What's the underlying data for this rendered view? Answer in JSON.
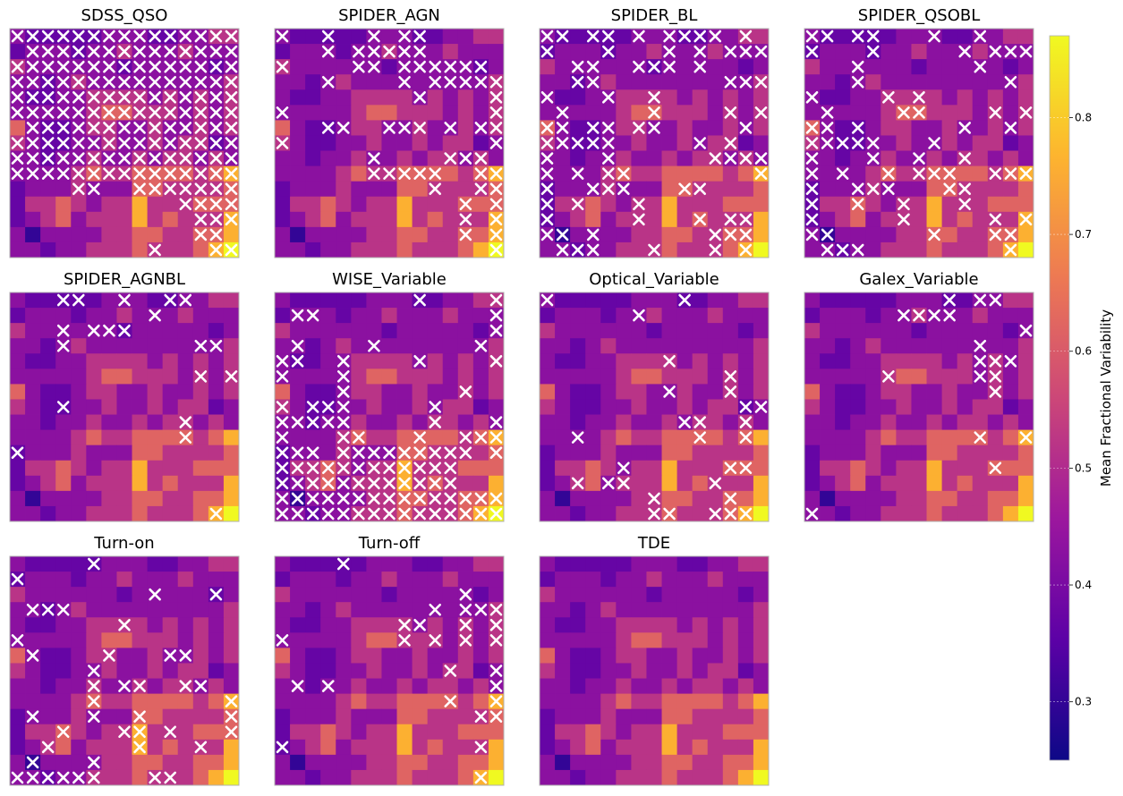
{
  "chart_data": {
    "type": "heatmap",
    "grid": [
      15,
      15
    ],
    "colormap": "plasma",
    "base_map_shared_across_panels": true,
    "base_map": [
      "2,1,1,1,1,1,2,2,2,1,1,2,2,3,3",
      "1,2,2,2,1,2,2,3,2,2,2,3,2,2,2",
      "3,2,2,2,2,2,2,1,2,2,2,2,2,1,2",
      "2,2,1,2,3,2,2,2,2,2,2,2,2,2,3",
      "2,1,1,2,2,3,3,3,3,2,3,2,3,2,3",
      "2,2,2,2,2,3,4,4,3,3,3,2,3,2,3",
      "4,2,1,1,2,3,3,2,2,3,2,2,3,2,3",
      "3,2,1,1,2,2,3,2,2,3,2,3,3,1,2",
      "2,2,1,2,2,3,2,2,3,2,3,3,2,3,2",
      "2,2,2,2,3,4,3,3,4,4,4,4,3,4,5",
      "1,2,2,2,3,2,2,2,4,4,3,3,3,3,4",
      "1,3,3,4,3,2,3,3,5,3,3,3,4,4,4",
      "1,2,3,4,2,3,3,3,5,3,4,3,3,3,5",
      "2,0,2,2,2,2,3,3,4,4,3,3,4,4,5",
      "2,2,1,2,2,3,3,3,4,3,3,3,4,5,6"
    ],
    "panels": [
      {
        "title": "SDSS_QSO",
        "markers": [
          "1,1,1,1,1,1,1,1,1,1,1,1,1,1,1",
          "0,1,1,1,1,1,1,1,1,1,1,1,1,1,1",
          "1,1,1,1,1,1,1,1,1,1,1,1,1,1,1",
          "1,1,1,1,1,1,1,1,1,1,1,1,1,1,1",
          "1,1,1,1,1,1,1,1,1,1,1,1,1,1,1",
          "1,1,1,1,1,1,1,1,1,1,1,1,1,1,1",
          "0,1,1,1,1,1,1,1,1,1,1,1,1,1,1",
          "1,1,1,1,1,1,1,1,1,1,1,1,1,1,1",
          "1,1,1,1,1,1,1,1,1,1,1,1,1,1,1",
          "1,1,1,1,1,1,1,1,1,1,1,1,1,1,1",
          "0,0,0,0,1,1,0,0,1,1,1,1,1,1,1",
          "0,0,0,0,0,0,0,0,0,0,0,1,1,1,1",
          "0,0,0,0,0,0,0,0,0,0,0,0,1,1,1",
          "0,0,0,0,0,0,0,0,0,0,0,0,1,1,0",
          "0,0,0,0,0,0,0,0,0,1,0,0,0,1,1"
        ]
      },
      {
        "title": "SPIDER_AGN",
        "markers": [
          "1,0,0,1,0,0,1,0,1,1,0,0,0,0,0",
          "0,0,0,1,0,1,1,1,1,1,0,0,0,0,0",
          "1,0,0,0,0,1,1,0,1,1,1,1,1,1,0",
          "0,0,0,1,0,0,0,0,1,0,1,1,1,1,1",
          "0,0,0,0,0,0,0,0,0,1,0,0,0,0,1",
          "1,0,0,0,0,0,0,0,0,0,0,0,0,0,1",
          "0,0,0,1,1,0,0,1,1,1,0,1,0,1,1",
          "1,0,0,0,0,0,0,0,0,0,0,0,0,0,1",
          "0,0,0,0,0,0,1,0,0,0,0,1,1,1,0",
          "0,0,0,0,0,0,1,1,1,1,1,0,0,1,1",
          "0,0,0,0,0,0,0,0,0,0,1,0,0,1,1",
          "0,0,0,0,0,0,0,0,0,0,0,0,1,0,1",
          "0,0,0,0,0,0,0,0,0,0,0,0,1,0,1",
          "0,0,0,0,0,0,0,0,0,0,0,0,1,0,1",
          "0,0,0,0,0,0,0,0,0,0,0,0,0,0,1"
        ]
      },
      {
        "title": "SPIDER_BL",
        "markers": [
          "1,1,0,1,1,0,1,0,1,1,1,1,0,1,0",
          "1,0,0,0,1,0,0,0,1,0,1,0,1,1,1",
          "0,0,1,1,0,0,1,1,1,0,1,0,0,0,0",
          "0,0,1,1,0,0,0,0,0,0,0,0,1,1,1",
          "1,0,0,0,1,0,0,1,0,0,0,0,0,0,0",
          "0,1,0,0,0,0,0,1,0,0,0,0,1,0,1",
          "1,1,0,1,1,0,1,1,0,0,0,0,0,1,0",
          "1,1,1,1,1,0,0,0,0,0,1,0,1,0,0",
          "1,0,0,0,1,0,0,0,0,0,0,1,1,1,1",
          "1,0,1,0,1,1,0,0,0,0,0,0,0,0,1",
          "1,0,0,1,1,1,0,0,0,1,1,0,0,0,0",
          "1,0,1,0,0,0,1,0,0,0,0,0,0,0,0",
          "1,0,0,0,0,0,1,0,0,0,1,0,1,1,0",
          "1,1,0,1,0,0,0,0,0,0,0,1,1,1,0",
          "0,1,1,1,0,0,0,1,0,0,0,1,0,1,0"
        ]
      },
      {
        "title": "SPIDER_QSOBL",
        "markers": [
          "1,1,0,1,1,0,0,0,1,0,0,1,0,0,0",
          "1,0,0,0,1,0,0,0,0,0,1,0,1,1,1",
          "0,0,0,1,0,0,0,0,0,0,0,1,0,0,0",
          "0,0,0,1,0,0,0,0,0,0,0,0,0,1,0",
          "1,0,0,0,0,1,0,1,0,0,0,0,0,0,0",
          "0,1,0,0,0,0,1,1,0,0,0,0,1,0,1",
          "1,1,0,1,0,0,0,0,0,0,1,0,0,1,0",
          "1,1,1,1,1,0,0,0,1,0,0,0,0,0,0",
          "1,0,0,0,1,0,0,1,0,0,1,0,0,0,0",
          "1,0,1,0,0,1,0,1,1,1,0,0,1,1,1",
          "1,0,0,1,1,1,0,0,0,1,1,0,0,0,0",
          "1,0,0,1,0,0,1,0,0,0,1,0,0,0,0",
          "1,0,0,0,0,0,1,0,0,0,0,0,1,0,1",
          "1,1,0,0,0,0,0,0,1,0,0,0,1,1,0",
          "0,1,1,1,0,0,0,0,0,0,0,0,0,1,0"
        ]
      },
      {
        "title": "SPIDER_AGNBL",
        "markers": [
          "0,0,0,1,1,0,0,1,0,0,1,1,0,0,0",
          "0,0,0,0,0,0,0,0,0,1,0,0,0,0,0",
          "0,0,0,1,0,1,1,1,0,0,0,0,0,0,0",
          "0,0,0,1,0,0,0,0,0,0,0,0,1,1,0",
          "0,0,0,0,0,0,0,0,0,0,0,0,0,0,0",
          "0,0,0,0,0,0,0,0,0,0,0,0,1,0,1",
          "0,0,0,0,0,0,0,0,0,0,0,0,0,0,0",
          "0,0,0,1,0,0,0,0,0,0,0,0,0,0,0",
          "0,0,0,0,0,0,0,0,0,0,0,1,0,0,0",
          "0,0,0,0,0,0,0,0,0,0,0,1,0,0,0",
          "1,0,0,0,0,0,0,0,0,0,0,0,0,0,0",
          "0,0,0,0,0,0,0,0,0,0,0,0,0,0,0",
          "0,0,0,0,0,0,0,0,0,0,0,0,0,0,0",
          "0,0,0,0,0,0,0,0,0,0,0,0,0,0,0",
          "0,0,0,0,0,0,0,0,0,0,0,0,0,1,0"
        ]
      },
      {
        "title": "WISE_Variable",
        "markers": [
          "0,0,0,0,0,0,0,0,0,1,0,0,0,0,1",
          "0,1,1,0,0,0,0,0,0,0,0,0,0,0,1",
          "0,0,0,0,0,0,0,0,0,0,0,0,0,0,1",
          "0,1,0,0,0,0,1,0,0,0,0,0,0,1,0",
          "1,1,0,0,1,0,0,0,0,1,0,0,0,0,1",
          "1,0,0,0,1,0,0,0,0,0,0,0,0,0,0",
          "0,0,0,0,1,0,0,0,0,0,0,0,1,0,0",
          "1,0,1,1,1,0,0,0,0,0,1,0,0,0,0",
          "1,1,1,1,1,0,0,0,0,0,1,0,0,0,1",
          "1,0,0,0,1,1,0,0,0,1,0,0,1,1,1",
          "1,1,1,0,1,1,1,1,1,1,1,1,1,0,1",
          "1,1,1,1,1,1,1,1,1,1,1,1,0,0,0",
          "1,1,1,1,1,1,1,1,1,1,1,1,0,0,0",
          "1,1,1,1,1,1,1,1,1,1,1,1,1,1,1",
          "1,1,1,1,1,1,1,1,1,1,1,1,1,1,1"
        ]
      },
      {
        "title": "Optical_Variable",
        "markers": [
          "1,0,0,0,0,0,0,0,0,1,0,0,0,0,0",
          "0,0,0,0,0,0,1,0,0,0,0,0,0,0,0",
          "0,0,0,0,0,0,0,0,0,0,0,0,0,0,0",
          "0,0,0,0,0,0,0,0,0,0,0,0,0,0,0",
          "0,0,0,0,0,0,0,0,1,0,0,0,0,0,0",
          "0,0,0,0,0,0,0,0,0,0,0,0,1,0,0",
          "0,0,0,0,0,0,0,0,1,0,0,0,1,0,0",
          "0,0,0,0,0,0,0,0,0,0,0,0,0,1,1",
          "0,0,0,0,0,0,0,0,0,1,1,0,0,1,0",
          "0,0,1,0,0,0,0,0,0,0,1,0,0,1,0",
          "0,0,0,0,0,0,0,0,0,0,0,0,0,0,0",
          "0,0,0,0,0,1,0,0,0,0,0,0,1,1,0",
          "0,0,1,0,1,1,0,0,0,0,0,1,0,0,0",
          "0,0,0,0,0,0,0,1,0,0,0,0,1,0,0",
          "0,0,0,0,0,0,0,1,1,0,0,1,1,1,0"
        ]
      },
      {
        "title": "Galex_Variable",
        "markers": [
          "0,0,0,0,0,0,0,0,0,1,0,1,1,0,0",
          "0,0,0,0,0,0,1,1,1,1,0,0,0,0,0",
          "0,0,0,0,0,0,0,0,0,0,0,0,0,0,1",
          "0,0,0,0,0,0,0,0,0,0,0,1,0,0,0",
          "0,0,0,0,0,0,0,0,0,0,0,1,1,1,0",
          "0,0,0,0,0,1,0,0,0,0,0,1,1,0,0",
          "0,0,0,0,0,0,0,0,0,0,0,0,1,0,0",
          "0,0,0,0,0,0,0,0,0,0,0,0,0,0,0",
          "0,0,0,0,0,0,0,0,0,0,0,0,0,0,0",
          "0,0,0,0,0,0,0,0,0,0,0,1,0,0,1",
          "0,0,0,0,0,0,0,0,0,0,0,0,0,0,0",
          "0,0,0,0,0,0,0,0,0,0,0,0,1,0,0",
          "0,0,0,0,0,0,0,0,0,0,0,0,0,0,0",
          "0,0,0,0,0,0,0,0,0,0,0,0,0,0,0",
          "1,0,0,0,0,0,0,0,0,0,0,0,0,0,0"
        ]
      },
      {
        "title": "Turn-on",
        "markers": [
          "0,0,0,0,0,1,0,0,0,0,0,0,0,0,0",
          "1,0,0,0,0,0,0,0,0,0,0,0,0,0,0",
          "0,0,0,0,0,0,0,0,0,1,0,0,0,1,0",
          "0,1,1,1,0,0,0,0,0,0,0,0,0,0,0",
          "0,0,0,0,0,0,0,1,0,0,0,0,0,0,0",
          "1,0,0,0,0,0,0,0,0,0,0,0,0,0,0",
          "0,1,0,0,0,0,1,0,0,0,1,1,0,0,0",
          "0,0,0,0,0,1,0,0,0,0,0,0,0,0,0",
          "0,0,0,0,0,1,0,1,1,0,0,1,1,0,0",
          "0,0,0,0,0,1,0,0,0,0,0,0,0,0,1",
          "0,1,0,0,0,1,0,0,1,0,0,0,0,0,1",
          "0,0,0,1,0,0,0,1,1,0,1,0,0,0,1",
          "0,0,1,0,0,0,0,0,1,0,0,0,1,0,0",
          "0,1,0,0,0,1,0,0,0,0,0,0,0,0,0",
          "1,1,1,1,1,1,0,0,0,1,1,0,0,0,0"
        ]
      },
      {
        "title": "Turn-off",
        "markers": [
          "0,0,0,0,1,0,0,0,0,0,0,0,0,0,0",
          "0,0,0,0,0,0,0,0,0,0,0,0,0,0,0",
          "0,0,0,0,0,0,0,0,0,0,0,0,1,0,0",
          "0,0,0,0,0,0,0,0,0,0,1,0,1,1,1",
          "0,0,0,0,0,0,0,0,1,1,0,0,1,0,1",
          "1,0,0,0,0,0,0,0,1,0,1,0,1,0,1",
          "0,0,0,0,0,0,0,0,0,0,0,0,0,0,0",
          "0,0,0,0,0,0,0,0,0,0,0,1,0,0,1",
          "0,1,0,1,0,0,0,0,0,0,0,0,0,0,1",
          "0,0,0,0,0,0,0,0,0,0,0,1,0,0,1",
          "0,0,0,0,0,0,0,0,0,0,0,0,0,1,1",
          "0,0,0,0,0,0,0,0,0,0,0,0,0,0,0",
          "1,0,0,0,0,0,0,0,0,0,0,0,0,1,0",
          "0,0,0,0,0,0,0,0,0,0,0,0,0,0,0",
          "0,0,0,0,0,0,0,0,0,0,0,0,0,1,0"
        ]
      },
      {
        "title": "TDE",
        "markers": [
          "0,0,0,0,0,0,0,0,0,0,0,0,0,0,0",
          "0,0,0,0,0,0,0,0,0,0,0,0,0,0,0",
          "0,0,0,0,0,0,0,0,0,0,0,0,0,0,0",
          "0,0,0,0,0,0,0,0,0,0,0,0,0,0,0",
          "0,0,0,0,0,0,0,0,0,0,0,0,0,0,0",
          "0,0,0,0,0,0,0,0,0,0,0,0,0,0,0",
          "0,0,0,0,0,0,0,0,0,0,0,0,0,0,0",
          "0,0,0,0,0,0,0,0,0,0,0,0,0,0,0",
          "0,0,0,0,0,0,0,0,0,0,0,0,0,0,0",
          "0,0,0,0,0,0,0,0,0,0,0,0,0,0,0",
          "0,0,0,0,0,0,0,0,0,0,0,0,0,0,0",
          "0,0,0,0,0,0,0,0,0,0,0,0,0,0,0",
          "0,0,0,0,0,0,0,0,0,0,0,0,0,0,0",
          "0,0,0,0,0,0,0,0,0,0,0,0,0,0,0",
          "0,0,0,0,0,0,0,0,0,0,0,0,0,0,0"
        ]
      }
    ],
    "colorbar": {
      "label": "Mean Fractional Variability",
      "vmin": 0.25,
      "vmax": 0.87,
      "ticks": [
        0.3,
        0.4,
        0.5,
        0.6,
        0.7,
        0.8
      ],
      "placement": "right"
    }
  },
  "colors": {
    "plasma_stops": [
      "#0d0887",
      "#5c01a6",
      "#9c179e",
      "#cc4778",
      "#ed7953",
      "#fdb42f",
      "#f0f921"
    ],
    "marker": "#ffffff",
    "frame": "#b0b0b0"
  }
}
